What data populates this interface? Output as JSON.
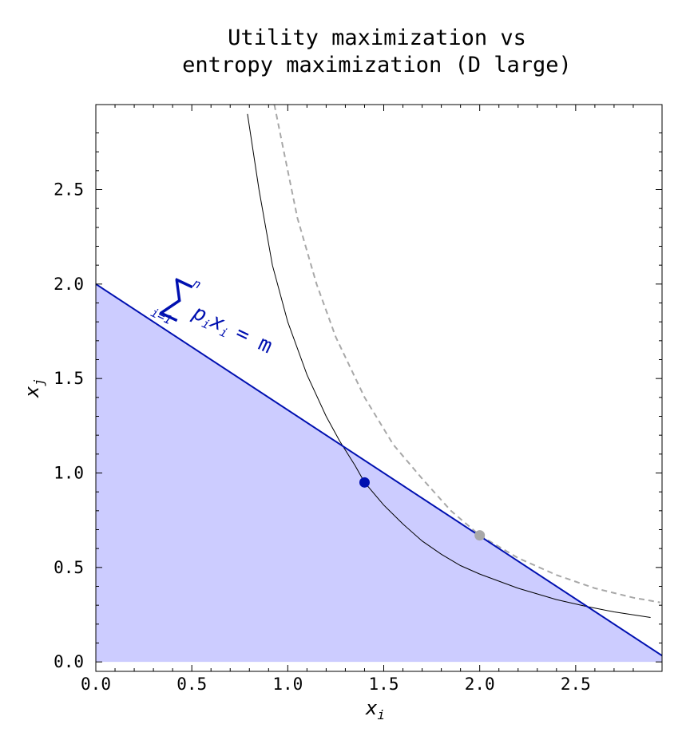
{
  "chart_data": {
    "type": "line",
    "title_line1": "Utility maximization vs",
    "title_line2": "entropy maximization (D large)",
    "xlabel": "x",
    "xlabel_sub": "i",
    "ylabel": "x",
    "ylabel_sub": "j",
    "xlim": [
      0,
      2.95
    ],
    "ylim": [
      -0.05,
      2.95
    ],
    "x_ticks": [
      "0.0",
      "0.5",
      "1.0",
      "1.5",
      "2.0",
      "2.5"
    ],
    "y_ticks": [
      "0.0",
      "0.5",
      "1.0",
      "1.5",
      "2.0",
      "2.5"
    ],
    "budget_line": {
      "x_intercept": 3.0,
      "y_intercept": 2.0
    },
    "feasible_region_color": "#ccccff",
    "budget_color": "#0010b0",
    "annotation": {
      "sum_lower": "i=1",
      "sum_upper": "n",
      "sum_sign": "∑",
      "term_p": "p",
      "term_p_sub": "i",
      "term_x": "x",
      "term_x_sub": "i",
      "equals": "= m"
    },
    "utility_curve": {
      "points": [
        [
          0.79,
          2.9
        ],
        [
          0.85,
          2.5
        ],
        [
          0.92,
          2.1
        ],
        [
          1.0,
          1.8
        ],
        [
          1.1,
          1.52
        ],
        [
          1.2,
          1.3
        ],
        [
          1.27,
          1.17
        ],
        [
          1.35,
          1.04
        ],
        [
          1.4,
          0.95
        ],
        [
          1.5,
          0.83
        ],
        [
          1.6,
          0.73
        ],
        [
          1.7,
          0.64
        ],
        [
          1.8,
          0.57
        ],
        [
          1.9,
          0.51
        ],
        [
          2.0,
          0.465
        ],
        [
          2.2,
          0.39
        ],
        [
          2.4,
          0.33
        ],
        [
          2.55,
          0.295
        ],
        [
          2.7,
          0.265
        ],
        [
          2.89,
          0.235
        ]
      ],
      "color": "#000000"
    },
    "entropy_curve": {
      "points": [
        [
          0.93,
          2.95
        ],
        [
          0.98,
          2.7
        ],
        [
          1.05,
          2.35
        ],
        [
          1.15,
          2.0
        ],
        [
          1.25,
          1.72
        ],
        [
          1.4,
          1.4
        ],
        [
          1.55,
          1.15
        ],
        [
          1.7,
          0.97
        ],
        [
          1.85,
          0.8
        ],
        [
          2.0,
          0.67
        ],
        [
          2.2,
          0.55
        ],
        [
          2.4,
          0.46
        ],
        [
          2.6,
          0.39
        ],
        [
          2.8,
          0.34
        ],
        [
          2.94,
          0.315
        ]
      ],
      "color": "#a8a8a8",
      "dashed": true
    },
    "points": [
      {
        "x": 1.4,
        "y": 0.95,
        "color": "#0010b0"
      },
      {
        "x": 2.0,
        "y": 0.67,
        "color": "#a8a8a8"
      }
    ]
  }
}
